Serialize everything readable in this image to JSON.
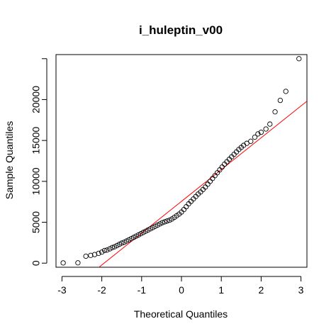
{
  "chart_data": {
    "type": "scatter",
    "title": "i_huleptin_v00",
    "xlabel": "Theoretical Quantiles",
    "ylabel": "Sample Quantiles",
    "xlim": [
      -3.15,
      3.15
    ],
    "ylim": [
      -500,
      25500
    ],
    "xticks": [
      -3,
      -2,
      -1,
      0,
      1,
      2,
      3
    ],
    "yticks": [
      0,
      5000,
      10000,
      15000,
      20000
    ],
    "reference_line": {
      "color": "#ff0000",
      "points": [
        [
          -2.2,
          -1000
        ],
        [
          3.15,
          19800
        ]
      ]
    },
    "point_color": "#000000",
    "line_color": "#ff0000",
    "points": [
      [
        -2.97,
        30
      ],
      [
        -2.6,
        40
      ],
      [
        -2.4,
        850
      ],
      [
        -2.28,
        950
      ],
      [
        -2.18,
        1050
      ],
      [
        -2.08,
        1200
      ],
      [
        -2.0,
        1350
      ],
      [
        -1.93,
        1550
      ],
      [
        -1.87,
        1600
      ],
      [
        -1.8,
        1750
      ],
      [
        -1.74,
        1900
      ],
      [
        -1.68,
        2000
      ],
      [
        -1.62,
        2150
      ],
      [
        -1.56,
        2300
      ],
      [
        -1.5,
        2450
      ],
      [
        -1.44,
        2550
      ],
      [
        -1.38,
        2700
      ],
      [
        -1.32,
        2850
      ],
      [
        -1.26,
        3000
      ],
      [
        -1.2,
        3150
      ],
      [
        -1.14,
        3300
      ],
      [
        -1.08,
        3450
      ],
      [
        -1.02,
        3600
      ],
      [
        -0.96,
        3750
      ],
      [
        -0.9,
        3900
      ],
      [
        -0.84,
        4050
      ],
      [
        -0.78,
        4200
      ],
      [
        -0.72,
        4350
      ],
      [
        -0.66,
        4500
      ],
      [
        -0.6,
        4650
      ],
      [
        -0.54,
        4800
      ],
      [
        -0.48,
        4950
      ],
      [
        -0.42,
        5050
      ],
      [
        -0.36,
        5150
      ],
      [
        -0.3,
        5250
      ],
      [
        -0.24,
        5400
      ],
      [
        -0.18,
        5600
      ],
      [
        -0.12,
        5800
      ],
      [
        -0.06,
        6000
      ],
      [
        0.0,
        6250
      ],
      [
        0.06,
        6550
      ],
      [
        0.12,
        6900
      ],
      [
        0.18,
        7250
      ],
      [
        0.24,
        7550
      ],
      [
        0.3,
        7850
      ],
      [
        0.36,
        8150
      ],
      [
        0.42,
        8450
      ],
      [
        0.48,
        8700
      ],
      [
        0.54,
        9000
      ],
      [
        0.6,
        9300
      ],
      [
        0.66,
        9650
      ],
      [
        0.72,
        10000
      ],
      [
        0.78,
        10350
      ],
      [
        0.84,
        10700
      ],
      [
        0.9,
        11050
      ],
      [
        0.96,
        11400
      ],
      [
        1.02,
        11750
      ],
      [
        1.08,
        12100
      ],
      [
        1.14,
        12400
      ],
      [
        1.2,
        12700
      ],
      [
        1.26,
        13000
      ],
      [
        1.32,
        13300
      ],
      [
        1.38,
        13600
      ],
      [
        1.44,
        13900
      ],
      [
        1.5,
        14150
      ],
      [
        1.56,
        14400
      ],
      [
        1.64,
        14650
      ],
      [
        1.74,
        14900
      ],
      [
        1.84,
        15400
      ],
      [
        1.92,
        15800
      ],
      [
        2.0,
        16000
      ],
      [
        2.12,
        16400
      ],
      [
        2.22,
        17000
      ],
      [
        2.35,
        18500
      ],
      [
        2.48,
        19900
      ],
      [
        2.62,
        21000
      ],
      [
        2.95,
        25000
      ]
    ]
  }
}
